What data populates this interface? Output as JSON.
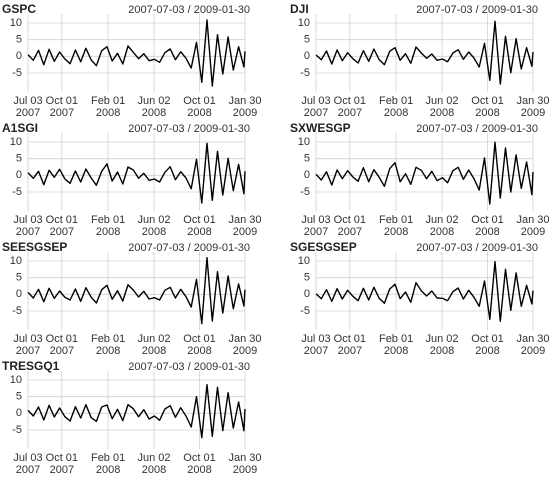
{
  "chart_data": [
    {
      "type": "line",
      "title": "GSPC",
      "subtitle": "2007-07-03 / 2009-01-30",
      "color": "#000000",
      "grid": true,
      "x": [
        "2007-07-03",
        "2007-07-17",
        "2007-07-31",
        "2007-08-14",
        "2007-08-28",
        "2007-09-11",
        "2007-09-25",
        "2007-10-09",
        "2007-10-23",
        "2007-11-06",
        "2007-11-20",
        "2007-12-04",
        "2007-12-18",
        "2008-01-01",
        "2008-01-15",
        "2008-01-29",
        "2008-02-12",
        "2008-02-26",
        "2008-03-11",
        "2008-03-25",
        "2008-04-08",
        "2008-04-22",
        "2008-05-06",
        "2008-05-20",
        "2008-06-03",
        "2008-06-17",
        "2008-07-01",
        "2008-07-15",
        "2008-07-29",
        "2008-08-12",
        "2008-08-26",
        "2008-09-09",
        "2008-09-23",
        "2008-10-07",
        "2008-10-21",
        "2008-11-04",
        "2008-11-18",
        "2008-12-02",
        "2008-12-16",
        "2008-12-30",
        "2009-01-13",
        "2009-01-27",
        "2009-01-30"
      ],
      "values": [
        0.5,
        -1.2,
        1.8,
        -2.5,
        2.1,
        -1.5,
        1.3,
        -0.8,
        -2.2,
        1.9,
        -1.6,
        2.4,
        -1.1,
        -2.8,
        1.7,
        2.9,
        -1.4,
        0.9,
        -2.3,
        3.1,
        1.2,
        -0.7,
        0.8,
        -1.3,
        -0.9,
        -1.8,
        1.1,
        2.2,
        -1.0,
        1.4,
        -0.6,
        -3.5,
        4.2,
        -7.8,
        10.9,
        -8.9,
        6.5,
        -5.3,
        5.8,
        -4.1,
        2.9,
        -3.2,
        1.5
      ],
      "xlim": [
        "2007-07-03",
        "2009-01-30"
      ],
      "xticks": [
        {
          "value": "2007-07-03",
          "label": [
            "Jul 03",
            "2007"
          ]
        },
        {
          "value": "2007-10-01",
          "label": [
            "Oct 01",
            "2007"
          ]
        },
        {
          "value": "2008-02-01",
          "label": [
            "Feb 01",
            "2008"
          ]
        },
        {
          "value": "2008-06-02",
          "label": [
            "Jun 02",
            "2008"
          ]
        },
        {
          "value": "2008-10-01",
          "label": [
            "Oct 01",
            "2008"
          ]
        },
        {
          "value": "2009-01-30",
          "label": [
            "Jan 30",
            "2009"
          ]
        }
      ],
      "ylim": [
        -9.5,
        11.5
      ],
      "yticks": [
        10,
        5,
        0,
        -5
      ]
    },
    {
      "type": "line",
      "title": "DJI",
      "subtitle": "2007-07-03 / 2009-01-30",
      "color": "#000000",
      "grid": true,
      "x": [
        "2007-07-03",
        "2007-07-17",
        "2007-07-31",
        "2007-08-14",
        "2007-08-28",
        "2007-09-11",
        "2007-09-25",
        "2007-10-09",
        "2007-10-23",
        "2007-11-06",
        "2007-11-20",
        "2007-12-04",
        "2007-12-18",
        "2008-01-01",
        "2008-01-15",
        "2008-01-29",
        "2008-02-12",
        "2008-02-26",
        "2008-03-11",
        "2008-03-25",
        "2008-04-08",
        "2008-04-22",
        "2008-05-06",
        "2008-05-20",
        "2008-06-03",
        "2008-06-17",
        "2008-07-01",
        "2008-07-15",
        "2008-07-29",
        "2008-08-12",
        "2008-08-26",
        "2008-09-09",
        "2008-09-23",
        "2008-10-07",
        "2008-10-21",
        "2008-11-04",
        "2008-11-18",
        "2008-12-02",
        "2008-12-16",
        "2008-12-30",
        "2009-01-13",
        "2009-01-27",
        "2009-01-30"
      ],
      "values": [
        0.4,
        -1.0,
        1.6,
        -2.3,
        1.9,
        -1.3,
        1.1,
        -0.7,
        -2.0,
        1.7,
        -1.5,
        2.2,
        -1.0,
        -2.5,
        1.5,
        2.6,
        -1.2,
        0.8,
        -2.1,
        2.8,
        1.0,
        -0.6,
        0.7,
        -1.2,
        -0.8,
        -1.6,
        1.0,
        2.0,
        -0.9,
        1.3,
        -0.5,
        -3.2,
        3.9,
        -7.2,
        10.5,
        -8.3,
        6.0,
        -4.9,
        5.3,
        -3.8,
        2.6,
        -3.0,
        1.3
      ],
      "xlim": [
        "2007-07-03",
        "2009-01-30"
      ],
      "xticks": [
        {
          "value": "2007-07-03",
          "label": [
            "Jul 03",
            "2007"
          ]
        },
        {
          "value": "2007-10-01",
          "label": [
            "Oct 01",
            "2007"
          ]
        },
        {
          "value": "2008-02-01",
          "label": [
            "Feb 01",
            "2008"
          ]
        },
        {
          "value": "2008-06-02",
          "label": [
            "Jun 02",
            "2008"
          ]
        },
        {
          "value": "2008-10-01",
          "label": [
            "Oct 01",
            "2008"
          ]
        },
        {
          "value": "2009-01-30",
          "label": [
            "Jan 30",
            "2009"
          ]
        }
      ],
      "ylim": [
        -9.5,
        11.5
      ],
      "yticks": [
        10,
        5,
        0,
        -5
      ]
    },
    {
      "type": "line",
      "title": "A1SGI",
      "subtitle": "2007-07-03 / 2009-01-30",
      "color": "#000000",
      "grid": true,
      "x": [
        "2007-07-03",
        "2007-07-17",
        "2007-07-31",
        "2007-08-14",
        "2007-08-28",
        "2007-09-11",
        "2007-09-25",
        "2007-10-09",
        "2007-10-23",
        "2007-11-06",
        "2007-11-20",
        "2007-12-04",
        "2007-12-18",
        "2008-01-01",
        "2008-01-15",
        "2008-01-29",
        "2008-02-12",
        "2008-02-26",
        "2008-03-11",
        "2008-03-25",
        "2008-04-08",
        "2008-04-22",
        "2008-05-06",
        "2008-05-20",
        "2008-06-03",
        "2008-06-17",
        "2008-07-01",
        "2008-07-15",
        "2008-07-29",
        "2008-08-12",
        "2008-08-26",
        "2008-09-09",
        "2008-09-23",
        "2008-10-07",
        "2008-10-21",
        "2008-11-04",
        "2008-11-18",
        "2008-12-02",
        "2008-12-16",
        "2008-12-30",
        "2009-01-13",
        "2009-01-27",
        "2009-01-30"
      ],
      "values": [
        0.8,
        -0.9,
        1.2,
        -2.8,
        1.5,
        -0.6,
        1.8,
        -1.1,
        -2.4,
        1.3,
        -2.0,
        1.9,
        -0.8,
        -3.0,
        1.2,
        3.4,
        -1.7,
        1.0,
        -2.6,
        2.5,
        1.6,
        -0.9,
        0.6,
        -1.5,
        -1.1,
        -2.0,
        0.9,
        2.6,
        -1.3,
        1.1,
        -0.8,
        -4.0,
        4.8,
        -8.3,
        9.6,
        -7.5,
        7.2,
        -5.9,
        5.1,
        -4.6,
        3.3,
        -5.5,
        1.2
      ],
      "xlim": [
        "2007-07-03",
        "2009-01-30"
      ],
      "xticks": [
        {
          "value": "2007-07-03",
          "label": [
            "Jul 03",
            "2007"
          ]
        },
        {
          "value": "2007-10-01",
          "label": [
            "Oct 01",
            "2007"
          ]
        },
        {
          "value": "2008-02-01",
          "label": [
            "Feb 01",
            "2008"
          ]
        },
        {
          "value": "2008-06-02",
          "label": [
            "Jun 02",
            "2008"
          ]
        },
        {
          "value": "2008-10-01",
          "label": [
            "Oct 01",
            "2008"
          ]
        },
        {
          "value": "2009-01-30",
          "label": [
            "Jan 30",
            "2009"
          ]
        }
      ],
      "ylim": [
        -9.5,
        11.5
      ],
      "yticks": [
        10,
        5,
        0,
        -5
      ]
    },
    {
      "type": "line",
      "title": "SXWESGP",
      "subtitle": "2007-07-03 / 2009-01-30",
      "color": "#000000",
      "grid": true,
      "x": [
        "2007-07-03",
        "2007-07-17",
        "2007-07-31",
        "2007-08-14",
        "2007-08-28",
        "2007-09-11",
        "2007-09-25",
        "2007-10-09",
        "2007-10-23",
        "2007-11-06",
        "2007-11-20",
        "2007-12-04",
        "2007-12-18",
        "2008-01-01",
        "2008-01-15",
        "2008-01-29",
        "2008-02-12",
        "2008-02-26",
        "2008-03-11",
        "2008-03-25",
        "2008-04-08",
        "2008-04-22",
        "2008-05-06",
        "2008-05-20",
        "2008-06-03",
        "2008-06-17",
        "2008-07-01",
        "2008-07-15",
        "2008-07-29",
        "2008-08-12",
        "2008-08-26",
        "2008-09-09",
        "2008-09-23",
        "2008-10-07",
        "2008-10-21",
        "2008-11-04",
        "2008-11-18",
        "2008-12-02",
        "2008-12-16",
        "2008-12-30",
        "2009-01-13",
        "2009-01-27",
        "2009-01-30"
      ],
      "values": [
        0.3,
        -1.4,
        1.1,
        -2.9,
        1.6,
        -1.0,
        1.4,
        -0.5,
        -1.8,
        2.3,
        -1.9,
        1.7,
        -0.6,
        -3.3,
        2.0,
        3.8,
        -1.9,
        0.5,
        -2.7,
        2.4,
        1.5,
        -1.0,
        1.2,
        -1.6,
        -0.7,
        -2.2,
        1.4,
        2.4,
        -1.2,
        1.6,
        -1.0,
        -4.4,
        5.2,
        -8.6,
        9.9,
        -6.8,
        8.2,
        -5.0,
        6.1,
        -3.9,
        4.0,
        -5.8,
        1.0
      ],
      "xlim": [
        "2007-07-03",
        "2009-01-30"
      ],
      "xticks": [
        {
          "value": "2007-07-03",
          "label": [
            "Jul 03",
            "2007"
          ]
        },
        {
          "value": "2007-10-01",
          "label": [
            "Oct 01",
            "2007"
          ]
        },
        {
          "value": "2008-02-01",
          "label": [
            "Feb 01",
            "2008"
          ]
        },
        {
          "value": "2008-06-02",
          "label": [
            "Jun 02",
            "2008"
          ]
        },
        {
          "value": "2008-10-01",
          "label": [
            "Oct 01",
            "2008"
          ]
        },
        {
          "value": "2009-01-30",
          "label": [
            "Jan 30",
            "2009"
          ]
        }
      ],
      "ylim": [
        -9.5,
        11.5
      ],
      "yticks": [
        10,
        5,
        0,
        -5
      ]
    },
    {
      "type": "line",
      "title": "SEESGSEP",
      "subtitle": "2007-07-03 / 2009-01-30",
      "color": "#000000",
      "grid": true,
      "x": [
        "2007-07-03",
        "2007-07-17",
        "2007-07-31",
        "2007-08-14",
        "2007-08-28",
        "2007-09-11",
        "2007-09-25",
        "2007-10-09",
        "2007-10-23",
        "2007-11-06",
        "2007-11-20",
        "2007-12-04",
        "2007-12-18",
        "2008-01-01",
        "2008-01-15",
        "2008-01-29",
        "2008-02-12",
        "2008-02-26",
        "2008-03-11",
        "2008-03-25",
        "2008-04-08",
        "2008-04-22",
        "2008-05-06",
        "2008-05-20",
        "2008-06-03",
        "2008-06-17",
        "2008-07-01",
        "2008-07-15",
        "2008-07-29",
        "2008-08-12",
        "2008-08-26",
        "2008-09-09",
        "2008-09-23",
        "2008-10-07",
        "2008-10-21",
        "2008-11-04",
        "2008-11-18",
        "2008-12-02",
        "2008-12-16",
        "2008-12-30",
        "2009-01-13",
        "2009-01-27",
        "2009-01-30"
      ],
      "values": [
        0.6,
        -1.1,
        1.5,
        -2.2,
        1.8,
        -1.2,
        1.0,
        -0.9,
        -1.7,
        1.6,
        -2.1,
        2.0,
        -0.9,
        -2.6,
        1.4,
        2.7,
        -1.5,
        1.1,
        -2.0,
        2.9,
        1.3,
        -0.8,
        0.9,
        -1.4,
        -1.0,
        -1.7,
        1.2,
        2.1,
        -1.1,
        1.5,
        -0.7,
        -3.8,
        4.5,
        -8.8,
        11.0,
        -8.0,
        6.8,
        -5.6,
        5.5,
        -4.3,
        3.1,
        -3.5,
        1.4
      ],
      "xlim": [
        "2007-07-03",
        "2009-01-30"
      ],
      "xticks": [
        {
          "value": "2007-07-03",
          "label": [
            "Jul 03",
            "2007"
          ]
        },
        {
          "value": "2007-10-01",
          "label": [
            "Oct 01",
            "2007"
          ]
        },
        {
          "value": "2008-02-01",
          "label": [
            "Feb 01",
            "2008"
          ]
        },
        {
          "value": "2008-06-02",
          "label": [
            "Jun 02",
            "2008"
          ]
        },
        {
          "value": "2008-10-01",
          "label": [
            "Oct 01",
            "2008"
          ]
        },
        {
          "value": "2009-01-30",
          "label": [
            "Jan 30",
            "2009"
          ]
        }
      ],
      "ylim": [
        -9.5,
        11.5
      ],
      "yticks": [
        10,
        5,
        0,
        -5
      ]
    },
    {
      "type": "line",
      "title": "SGESGSEP",
      "subtitle": "2007-07-03 / 2009-01-30",
      "color": "#000000",
      "grid": true,
      "x": [
        "2007-07-03",
        "2007-07-17",
        "2007-07-31",
        "2007-08-14",
        "2007-08-28",
        "2007-09-11",
        "2007-09-25",
        "2007-10-09",
        "2007-10-23",
        "2007-11-06",
        "2007-11-20",
        "2007-12-04",
        "2007-12-18",
        "2008-01-01",
        "2008-01-15",
        "2008-01-29",
        "2008-02-12",
        "2008-02-26",
        "2008-03-11",
        "2008-03-25",
        "2008-04-08",
        "2008-04-22",
        "2008-05-06",
        "2008-05-20",
        "2008-06-03",
        "2008-06-17",
        "2008-07-01",
        "2008-07-15",
        "2008-07-29",
        "2008-08-12",
        "2008-08-26",
        "2008-09-09",
        "2008-09-23",
        "2008-10-07",
        "2008-10-21",
        "2008-11-04",
        "2008-11-18",
        "2008-12-02",
        "2008-12-16",
        "2008-12-30",
        "2009-01-13",
        "2009-01-27",
        "2009-01-30"
      ],
      "values": [
        0.2,
        -1.3,
        1.4,
        -2.1,
        1.7,
        -1.4,
        1.2,
        -0.6,
        -1.9,
        1.8,
        -1.7,
        2.1,
        -1.2,
        -2.7,
        1.6,
        3.0,
        -1.3,
        0.7,
        -2.4,
        3.5,
        1.1,
        -0.5,
        1.0,
        -1.1,
        -1.2,
        -1.9,
        0.8,
        1.9,
        -1.4,
        1.2,
        -0.9,
        -3.6,
        4.0,
        -7.5,
        9.8,
        -8.1,
        7.5,
        -4.8,
        6.4,
        -3.6,
        2.7,
        -2.9,
        1.1
      ],
      "xlim": [
        "2007-07-03",
        "2009-01-30"
      ],
      "xticks": [
        {
          "value": "2007-07-03",
          "label": [
            "Jul 03",
            "2007"
          ]
        },
        {
          "value": "2007-10-01",
          "label": [
            "Oct 01",
            "2007"
          ]
        },
        {
          "value": "2008-02-01",
          "label": [
            "Feb 01",
            "2008"
          ]
        },
        {
          "value": "2008-06-02",
          "label": [
            "Jun 02",
            "2008"
          ]
        },
        {
          "value": "2008-10-01",
          "label": [
            "Oct 01",
            "2008"
          ]
        },
        {
          "value": "2009-01-30",
          "label": [
            "Jan 30",
            "2009"
          ]
        }
      ],
      "ylim": [
        -9.5,
        11.5
      ],
      "yticks": [
        10,
        5,
        0,
        -5
      ]
    },
    {
      "type": "line",
      "title": "TRESGQ1",
      "subtitle": "2007-07-03 / 2009-01-30",
      "color": "#000000",
      "grid": true,
      "x": [
        "2007-07-03",
        "2007-07-17",
        "2007-07-31",
        "2007-08-14",
        "2007-08-28",
        "2007-09-11",
        "2007-09-25",
        "2007-10-09",
        "2007-10-23",
        "2007-11-06",
        "2007-11-20",
        "2007-12-04",
        "2007-12-18",
        "2008-01-01",
        "2008-01-15",
        "2008-01-29",
        "2008-02-12",
        "2008-02-26",
        "2008-03-11",
        "2008-03-25",
        "2008-04-08",
        "2008-04-22",
        "2008-05-06",
        "2008-05-20",
        "2008-06-03",
        "2008-06-17",
        "2008-07-01",
        "2008-07-15",
        "2008-07-29",
        "2008-08-12",
        "2008-08-26",
        "2008-09-09",
        "2008-09-23",
        "2008-10-07",
        "2008-10-21",
        "2008-11-04",
        "2008-11-18",
        "2008-12-02",
        "2008-12-16",
        "2008-12-30",
        "2009-01-13",
        "2009-01-27",
        "2009-01-30"
      ],
      "values": [
        0.9,
        -0.8,
        1.9,
        -2.0,
        2.4,
        -1.1,
        1.6,
        -1.0,
        -2.3,
        2.0,
        -1.4,
        2.6,
        -1.3,
        -2.4,
        1.9,
        2.5,
        -1.6,
        1.2,
        -2.2,
        2.6,
        1.4,
        -1.0,
        1.1,
        -1.7,
        -0.8,
        -2.1,
        1.3,
        2.3,
        -1.2,
        1.7,
        -0.8,
        -4.1,
        5.0,
        -7.3,
        8.6,
        -6.9,
        7.8,
        -5.2,
        6.2,
        -4.4,
        3.4,
        -5.2,
        1.3
      ],
      "xlim": [
        "2007-07-03",
        "2009-01-30"
      ],
      "xticks": [
        {
          "value": "2007-07-03",
          "label": [
            "Jul 03",
            "2007"
          ]
        },
        {
          "value": "2007-10-01",
          "label": [
            "Oct 01",
            "2007"
          ]
        },
        {
          "value": "2008-02-01",
          "label": [
            "Feb 01",
            "2008"
          ]
        },
        {
          "value": "2008-06-02",
          "label": [
            "Jun 02",
            "2008"
          ]
        },
        {
          "value": "2008-10-01",
          "label": [
            "Oct 01",
            "2008"
          ]
        },
        {
          "value": "2009-01-30",
          "label": [
            "Jan 30",
            "2009"
          ]
        }
      ],
      "ylim": [
        -9.5,
        11.5
      ],
      "yticks": [
        10,
        5,
        0,
        -5
      ]
    }
  ]
}
